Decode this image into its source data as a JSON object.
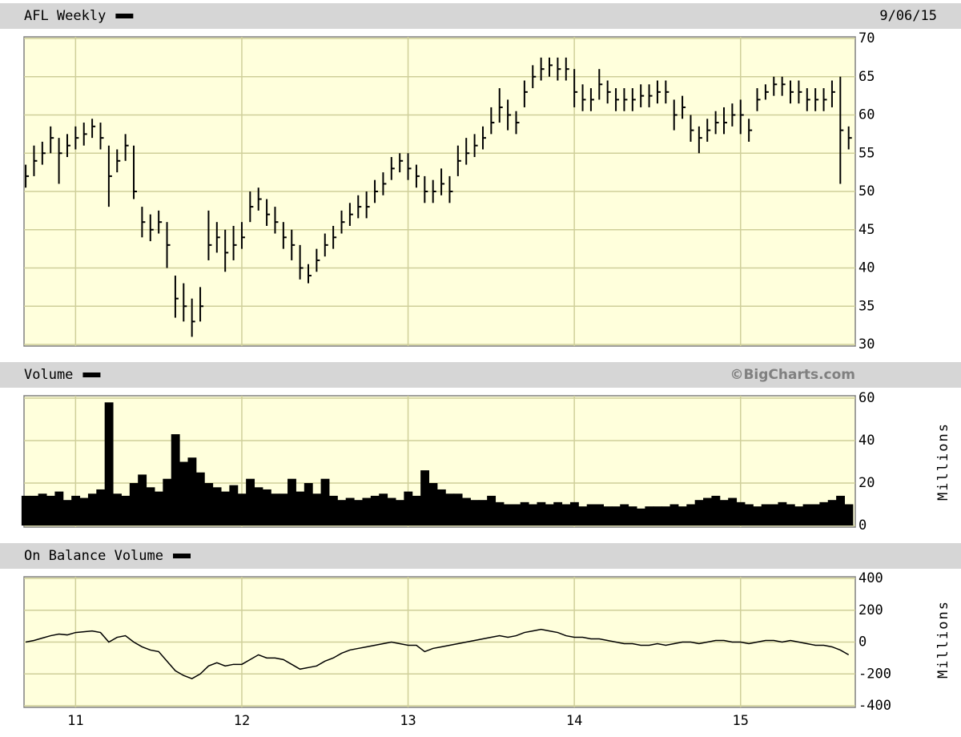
{
  "chart_data": [
    {
      "type": "ohlc",
      "title": "AFL Weekly",
      "date": "9/06/15",
      "ylim": [
        30,
        70
      ],
      "yticks": [
        30,
        35,
        40,
        45,
        50,
        55,
        60,
        65,
        70
      ],
      "grid": true,
      "color": "#000000",
      "high": [
        53.5,
        56,
        56.5,
        58.5,
        57,
        57.5,
        58.5,
        59,
        59.5,
        59,
        56,
        55.5,
        57.5,
        56,
        48,
        47,
        47.5,
        46,
        39,
        38,
        36,
        37.5,
        47.5,
        46,
        45,
        45.5,
        46,
        50,
        50.5,
        49,
        48,
        46,
        45,
        43,
        40.5,
        42.5,
        44.5,
        45.5,
        47.5,
        48.5,
        49.5,
        50,
        51.5,
        52.5,
        54.5,
        55,
        55,
        53.5,
        52,
        51.5,
        53,
        52,
        56,
        57,
        57.5,
        58.5,
        61,
        63.5,
        62,
        60.5,
        64.5,
        66.5,
        67.5,
        67.5,
        67.5,
        67.5,
        66,
        64,
        63.5,
        66,
        64.5,
        63.5,
        63.5,
        63.5,
        64,
        64,
        64.5,
        64.5,
        62,
        62.5,
        60,
        58.5,
        59.5,
        60.5,
        61,
        61.5,
        62,
        59.5,
        63.5,
        64,
        65,
        65,
        64.5,
        64.5,
        63.5,
        63.5,
        63.5,
        64.5,
        65,
        58.5
      ],
      "low": [
        50.5,
        52,
        53.5,
        55,
        51,
        54.5,
        55.5,
        56,
        57,
        55.5,
        48,
        52.5,
        54,
        49,
        44,
        43.5,
        44.5,
        40,
        33.5,
        33,
        31,
        33,
        41,
        42,
        39.5,
        41,
        42.5,
        46,
        47.5,
        45.5,
        44.5,
        42.5,
        41,
        38.5,
        38,
        39.5,
        41.5,
        42.5,
        44.5,
        45.5,
        46.5,
        46.5,
        48.5,
        49.5,
        51.5,
        52.5,
        51.5,
        50.5,
        48.5,
        48.5,
        49.5,
        48.5,
        52,
        53.5,
        54.5,
        55.5,
        57.5,
        59,
        58,
        57.5,
        61,
        63.5,
        64.5,
        65,
        64.5,
        64.5,
        61,
        60.5,
        60.5,
        62,
        61.5,
        60.5,
        60.5,
        60.5,
        61,
        61,
        61.5,
        61.5,
        58,
        59.5,
        56.5,
        55,
        56.5,
        57.5,
        57.5,
        58.5,
        57.5,
        56.5,
        60.5,
        62,
        62.5,
        62.5,
        61.5,
        61.5,
        60.5,
        60.5,
        60.5,
        61,
        51,
        55.5
      ],
      "close": [
        52,
        54,
        55,
        57,
        55,
        56,
        57,
        57.5,
        58.5,
        57,
        52,
        54,
        56,
        50,
        46,
        45,
        46,
        43,
        36,
        35,
        33,
        35,
        43,
        44,
        42,
        43,
        44,
        48,
        49,
        47,
        46,
        44,
        43,
        40,
        39,
        41,
        43,
        44,
        46,
        47,
        48,
        48,
        50,
        51,
        53,
        54,
        53,
        52,
        50,
        50,
        51,
        50,
        54,
        55,
        56,
        57,
        59,
        61,
        60,
        59,
        63,
        65,
        66,
        66.5,
        66,
        66,
        63,
        62,
        62,
        64,
        63,
        62,
        62,
        62,
        62.5,
        62.5,
        63,
        63,
        60,
        61,
        58,
        57,
        58,
        59,
        59,
        60,
        60,
        58,
        62,
        63,
        64,
        64,
        63,
        63,
        62,
        62,
        62,
        63,
        58,
        57
      ]
    },
    {
      "type": "bar",
      "title": "Volume",
      "source": "©BigCharts.com",
      "y_label": "Millions",
      "ylim": [
        0,
        60
      ],
      "yticks": [
        0,
        20,
        40,
        60
      ],
      "grid": true,
      "color": "#000000",
      "values": [
        14,
        14,
        15,
        14,
        16,
        12,
        14,
        13,
        15,
        17,
        58,
        15,
        14,
        20,
        24,
        18,
        16,
        22,
        43,
        30,
        32,
        25,
        20,
        18,
        16,
        19,
        15,
        22,
        18,
        17,
        15,
        15,
        22,
        16,
        20,
        15,
        22,
        14,
        12,
        13,
        12,
        13,
        14,
        15,
        13,
        12,
        16,
        14,
        26,
        20,
        17,
        15,
        15,
        13,
        12,
        12,
        14,
        11,
        10,
        10,
        11,
        10,
        11,
        10,
        11,
        10,
        11,
        9,
        10,
        10,
        9,
        9,
        10,
        9,
        8,
        9,
        9,
        9,
        10,
        9,
        10,
        12,
        13,
        14,
        12,
        13,
        11,
        10,
        9,
        10,
        10,
        11,
        10,
        9,
        10,
        10,
        11,
        12,
        14,
        10
      ]
    },
    {
      "type": "line",
      "title": "On Balance Volume",
      "y_label": "Millions",
      "ylim": [
        -400,
        400
      ],
      "yticks": [
        -400,
        -200,
        0,
        200,
        400
      ],
      "grid": true,
      "color": "#000000",
      "xlim": [
        10.69,
        15.69
      ],
      "xticks": [
        11,
        12,
        13,
        14,
        15
      ],
      "x": [
        10.7,
        10.75,
        10.8,
        10.85,
        10.9,
        10.95,
        11,
        11.05,
        11.1,
        11.15,
        11.2,
        11.25,
        11.3,
        11.35,
        11.4,
        11.45,
        11.5,
        11.55,
        11.6,
        11.65,
        11.7,
        11.75,
        11.8,
        11.85,
        11.9,
        11.95,
        12,
        12.05,
        12.1,
        12.15,
        12.2,
        12.25,
        12.3,
        12.35,
        12.4,
        12.45,
        12.5,
        12.55,
        12.6,
        12.65,
        12.7,
        12.75,
        12.8,
        12.85,
        12.9,
        12.95,
        13,
        13.05,
        13.1,
        13.15,
        13.2,
        13.25,
        13.3,
        13.35,
        13.4,
        13.45,
        13.5,
        13.55,
        13.6,
        13.65,
        13.7,
        13.75,
        13.8,
        13.85,
        13.9,
        13.95,
        14,
        14.05,
        14.1,
        14.15,
        14.2,
        14.25,
        14.3,
        14.35,
        14.4,
        14.45,
        14.5,
        14.55,
        14.6,
        14.65,
        14.7,
        14.75,
        14.8,
        14.85,
        14.9,
        14.95,
        15,
        15.05,
        15.1,
        15.15,
        15.2,
        15.25,
        15.3,
        15.35,
        15.4,
        15.45,
        15.5,
        15.55,
        15.6,
        15.65
      ],
      "values": [
        0,
        10,
        25,
        40,
        50,
        45,
        60,
        65,
        70,
        60,
        0,
        30,
        40,
        0,
        -30,
        -50,
        -60,
        -120,
        -180,
        -210,
        -230,
        -200,
        -150,
        -130,
        -150,
        -140,
        -140,
        -110,
        -80,
        -100,
        -100,
        -110,
        -140,
        -170,
        -160,
        -150,
        -120,
        -100,
        -70,
        -50,
        -40,
        -30,
        -20,
        -10,
        0,
        -10,
        -20,
        -20,
        -60,
        -40,
        -30,
        -20,
        -10,
        0,
        10,
        20,
        30,
        40,
        30,
        40,
        60,
        70,
        80,
        70,
        60,
        40,
        30,
        30,
        20,
        20,
        10,
        0,
        -10,
        -10,
        -20,
        -20,
        -10,
        -20,
        -10,
        0,
        0,
        -10,
        0,
        10,
        10,
        0,
        0,
        -10,
        0,
        10,
        10,
        0,
        10,
        0,
        -10,
        -20,
        -20,
        -30,
        -50,
        -80
      ]
    }
  ]
}
